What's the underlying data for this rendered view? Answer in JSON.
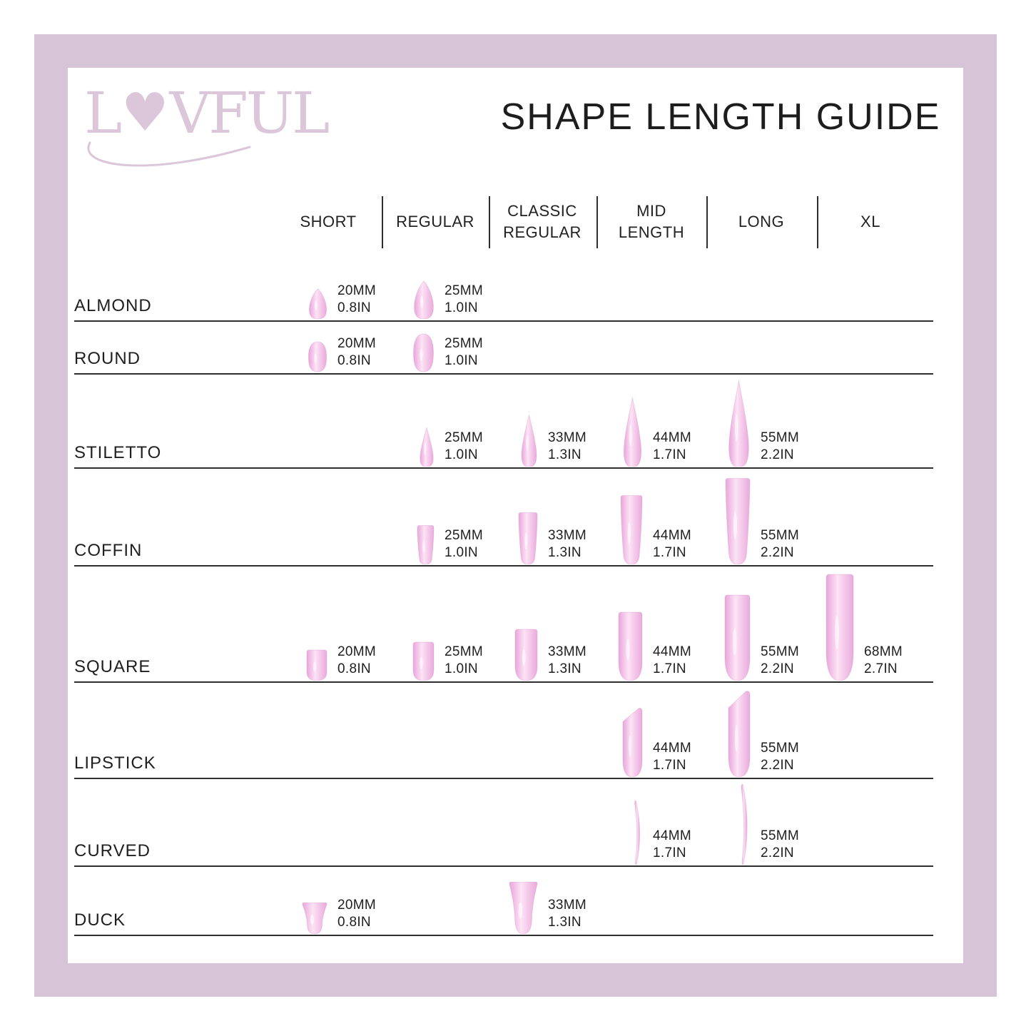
{
  "brand": {
    "name": "LOVFUL",
    "logo": {
      "letter_l": "L",
      "heart": "♥",
      "rest": "VFUL"
    }
  },
  "title": "SHAPE LENGTH GUIDE",
  "colors": {
    "frame": "#d8c4d7",
    "logo": "#dcc7da",
    "nail_main": "#f4c2e9",
    "nail_light": "#fce4f5",
    "nail_edge": "#e8a7d9",
    "text": "#1f1f1f"
  },
  "columns": [
    {
      "id": "short",
      "lines": [
        "SHORT"
      ]
    },
    {
      "id": "regular",
      "lines": [
        "REGULAR"
      ]
    },
    {
      "id": "classic_regular",
      "lines": [
        "CLASSIC",
        "REGULAR"
      ]
    },
    {
      "id": "mid_length",
      "lines": [
        "MID",
        "LENGTH"
      ]
    },
    {
      "id": "long",
      "lines": [
        "LONG"
      ]
    },
    {
      "id": "xl",
      "lines": [
        "XL"
      ]
    }
  ],
  "rows": [
    {
      "label": "ALMOND",
      "shape": "almond",
      "cells": [
        {
          "col": "short",
          "mm": 20,
          "mm_label": "20MM",
          "in_label": "0.8IN"
        },
        {
          "col": "regular",
          "mm": 25,
          "mm_label": "25MM",
          "in_label": "1.0IN"
        }
      ]
    },
    {
      "label": "ROUND",
      "shape": "round",
      "cells": [
        {
          "col": "short",
          "mm": 20,
          "mm_label": "20MM",
          "in_label": "0.8IN"
        },
        {
          "col": "regular",
          "mm": 25,
          "mm_label": "25MM",
          "in_label": "1.0IN"
        }
      ]
    },
    {
      "label": "STILETTO",
      "shape": "stiletto",
      "cells": [
        {
          "col": "regular",
          "mm": 25,
          "mm_label": "25MM",
          "in_label": "1.0IN"
        },
        {
          "col": "classic_regular",
          "mm": 33,
          "mm_label": "33MM",
          "in_label": "1.3IN"
        },
        {
          "col": "mid_length",
          "mm": 44,
          "mm_label": "44MM",
          "in_label": "1.7IN"
        },
        {
          "col": "long",
          "mm": 55,
          "mm_label": "55MM",
          "in_label": "2.2IN"
        }
      ]
    },
    {
      "label": "COFFIN",
      "shape": "coffin",
      "cells": [
        {
          "col": "regular",
          "mm": 25,
          "mm_label": "25MM",
          "in_label": "1.0IN"
        },
        {
          "col": "classic_regular",
          "mm": 33,
          "mm_label": "33MM",
          "in_label": "1.3IN"
        },
        {
          "col": "mid_length",
          "mm": 44,
          "mm_label": "44MM",
          "in_label": "1.7IN"
        },
        {
          "col": "long",
          "mm": 55,
          "mm_label": "55MM",
          "in_label": "2.2IN"
        }
      ]
    },
    {
      "label": "SQUARE",
      "shape": "square",
      "cells": [
        {
          "col": "short",
          "mm": 20,
          "mm_label": "20MM",
          "in_label": "0.8IN"
        },
        {
          "col": "regular",
          "mm": 25,
          "mm_label": "25MM",
          "in_label": "1.0IN"
        },
        {
          "col": "classic_regular",
          "mm": 33,
          "mm_label": "33MM",
          "in_label": "1.3IN"
        },
        {
          "col": "mid_length",
          "mm": 44,
          "mm_label": "44MM",
          "in_label": "1.7IN"
        },
        {
          "col": "long",
          "mm": 55,
          "mm_label": "55MM",
          "in_label": "2.2IN"
        },
        {
          "col": "xl",
          "mm": 68,
          "mm_label": "68MM",
          "in_label": "2.7IN"
        }
      ]
    },
    {
      "label": "LIPSTICK",
      "shape": "lipstick",
      "cells": [
        {
          "col": "mid_length",
          "mm": 44,
          "mm_label": "44MM",
          "in_label": "1.7IN"
        },
        {
          "col": "long",
          "mm": 55,
          "mm_label": "55MM",
          "in_label": "2.2IN"
        }
      ]
    },
    {
      "label": "CURVED",
      "shape": "curved",
      "cells": [
        {
          "col": "mid_length",
          "mm": 44,
          "mm_label": "44MM",
          "in_label": "1.7IN"
        },
        {
          "col": "long",
          "mm": 55,
          "mm_label": "55MM",
          "in_label": "2.2IN"
        }
      ]
    },
    {
      "label": "DUCK",
      "shape": "duck",
      "cells": [
        {
          "col": "short",
          "mm": 20,
          "mm_label": "20MM",
          "in_label": "0.8IN"
        },
        {
          "col": "classic_regular",
          "mm": 33,
          "mm_label": "33MM",
          "in_label": "1.3IN"
        }
      ]
    }
  ]
}
